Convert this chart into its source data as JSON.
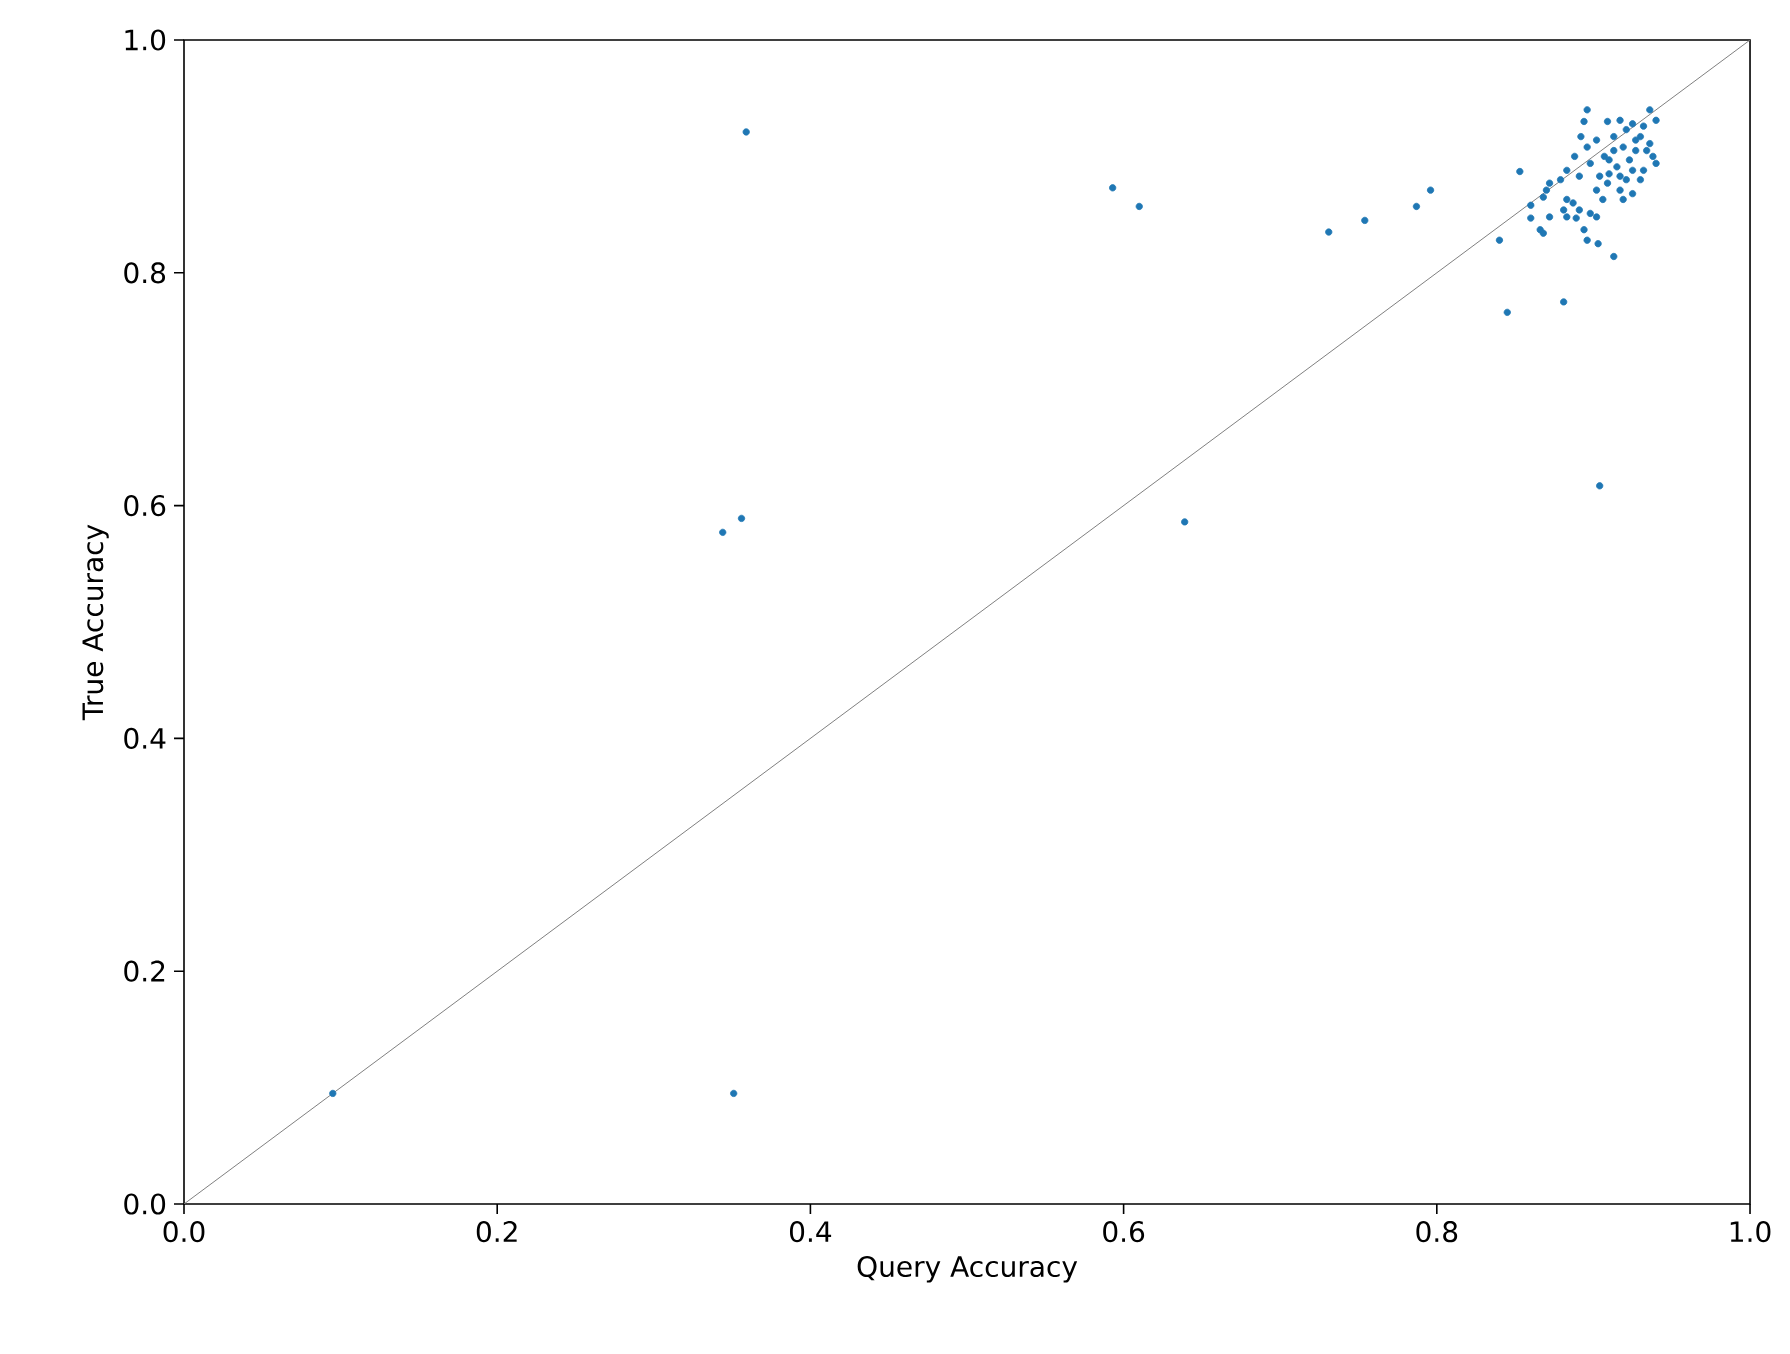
{
  "chart_data": {
    "type": "scatter",
    "xlabel": "Query Accuracy",
    "ylabel": "True Accuracy",
    "xlim": [
      0,
      1
    ],
    "ylim": [
      0,
      1
    ],
    "xticks": [
      {
        "value": 0,
        "label": "0.0"
      },
      {
        "value": 0.2,
        "label": "0.2"
      },
      {
        "value": 0.4,
        "label": "0.4"
      },
      {
        "value": 0.6,
        "label": "0.6"
      },
      {
        "value": 0.8,
        "label": "0.8"
      },
      {
        "value": 1,
        "label": "1.0"
      }
    ],
    "yticks": [
      {
        "value": 0,
        "label": "0.0"
      },
      {
        "value": 0.2,
        "label": "0.2"
      },
      {
        "value": 0.4,
        "label": "0.4"
      },
      {
        "value": 0.6,
        "label": "0.6"
      },
      {
        "value": 0.8,
        "label": "0.8"
      },
      {
        "value": 1,
        "label": "1.0"
      }
    ],
    "series": [
      {
        "type": "line",
        "marker": "none",
        "color": "#808080",
        "x": [
          0,
          1
        ],
        "values": [
          0,
          1
        ]
      },
      {
        "marker": "circle",
        "color": "#1f77b4",
        "x": [
          0.359,
          0.593,
          0.61,
          0.731,
          0.754,
          0.787,
          0.796,
          0.904,
          0.639,
          0.356,
          0.344,
          0.095,
          0.351,
          0.896,
          0.936,
          0.894,
          0.909,
          0.94,
          0.917,
          0.925,
          0.892,
          0.902,
          0.913,
          0.93,
          0.936,
          0.896,
          0.919,
          0.927,
          0.938,
          0.888,
          0.907,
          0.923,
          0.898,
          0.915,
          0.932,
          0.94,
          0.883,
          0.891,
          0.904,
          0.921,
          0.93,
          0.853,
          0.879,
          0.872,
          0.909,
          0.902,
          0.917,
          0.925,
          0.87,
          0.868,
          0.906,
          0.919,
          0.86,
          0.883,
          0.887,
          0.881,
          0.891,
          0.872,
          0.86,
          0.883,
          0.889,
          0.898,
          0.902,
          0.866,
          0.868,
          0.894,
          0.896,
          0.903,
          0.84,
          0.913,
          0.881,
          0.845,
          0.921,
          0.932,
          0.927,
          0.934,
          0.913,
          0.91,
          0.925,
          0.917,
          0.91
        ],
        "values": [
          0.921,
          0.873,
          0.857,
          0.835,
          0.845,
          0.857,
          0.871,
          0.617,
          0.586,
          0.589,
          0.577,
          0.095,
          0.095,
          0.94,
          0.94,
          0.93,
          0.93,
          0.931,
          0.931,
          0.928,
          0.917,
          0.914,
          0.917,
          0.917,
          0.911,
          0.908,
          0.908,
          0.905,
          0.9,
          0.9,
          0.9,
          0.897,
          0.894,
          0.891,
          0.888,
          0.894,
          0.888,
          0.883,
          0.883,
          0.88,
          0.88,
          0.887,
          0.88,
          0.877,
          0.877,
          0.871,
          0.871,
          0.868,
          0.871,
          0.865,
          0.863,
          0.863,
          0.858,
          0.863,
          0.86,
          0.854,
          0.854,
          0.848,
          0.847,
          0.848,
          0.847,
          0.851,
          0.848,
          0.837,
          0.834,
          0.837,
          0.828,
          0.825,
          0.828,
          0.814,
          0.775,
          0.766,
          0.923,
          0.926,
          0.914,
          0.905,
          0.905,
          0.897,
          0.888,
          0.883,
          0.885
        ]
      }
    ]
  }
}
